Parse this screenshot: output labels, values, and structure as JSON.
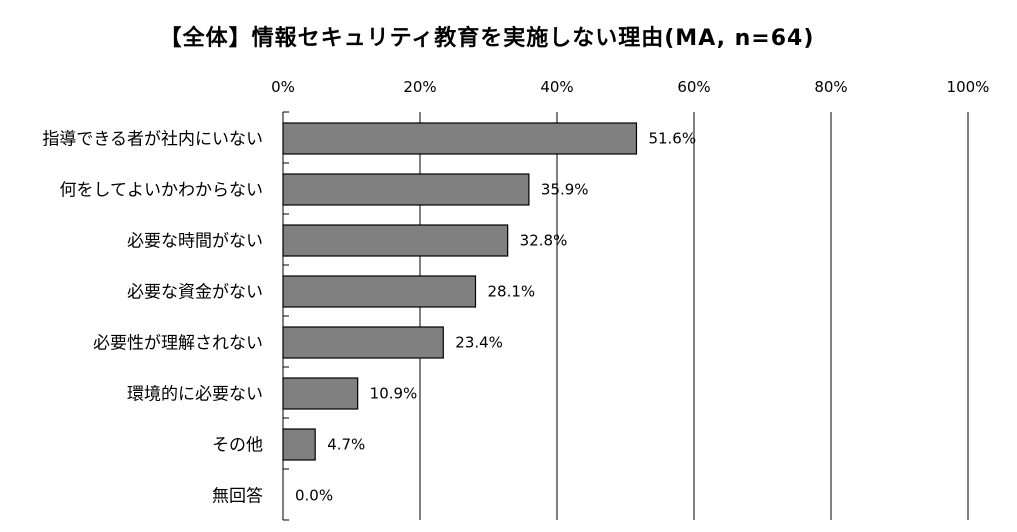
{
  "chart_data": {
    "type": "bar",
    "orientation": "horizontal",
    "title": "【全体】情報セキュリティ教育を実施しない理由(MA, n=64)",
    "categories": [
      "指導できる者が社内にいない",
      "何をしてよいかわからない",
      "必要な時間がない",
      "必要な資金がない",
      "必要性が理解されない",
      "環境的に必要ない",
      "その他",
      "無回答"
    ],
    "values": [
      51.6,
      35.9,
      32.8,
      28.1,
      23.4,
      10.9,
      4.7,
      0.0
    ],
    "value_labels": [
      "51.6%",
      "35.9%",
      "32.8%",
      "28.1%",
      "23.4%",
      "10.9%",
      "4.7%",
      "0.0%"
    ],
    "xlim": [
      0,
      100
    ],
    "x_ticks": [
      0,
      20,
      40,
      60,
      80,
      100
    ],
    "x_tick_labels": [
      "0%",
      "20%",
      "40%",
      "60%",
      "80%",
      "100%"
    ],
    "x_axis_position": "top",
    "grid": true,
    "legend": "none",
    "colors": {
      "bar": "#808080",
      "bar_stroke": "#000000",
      "grid": "#000000"
    }
  }
}
